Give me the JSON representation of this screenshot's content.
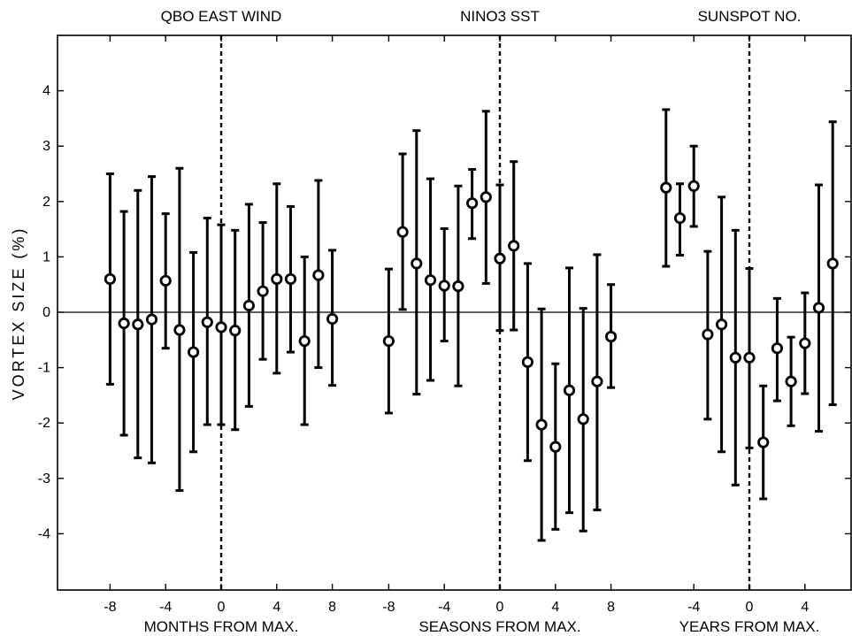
{
  "chart_data": {
    "type": "scatter",
    "ylabel": "VORTEX SIZE (%)",
    "ylim": [
      -5,
      5
    ],
    "yticks": [
      -4,
      -3,
      -2,
      -1,
      0,
      1,
      2,
      3,
      4
    ],
    "grid": false,
    "zero_line": true,
    "panels": [
      {
        "title": "QBO EAST WIND",
        "xlabel": "MONTHS FROM MAX.",
        "xlim": [
          -12,
          13.5
        ],
        "xticks": [
          -8,
          -4,
          0,
          4,
          8
        ],
        "series": [
          {
            "x": [
              -8,
              -7,
              -6,
              -5,
              -4,
              -3,
              -2,
              -1,
              0,
              1,
              2,
              3,
              4,
              5,
              6,
              7,
              8
            ],
            "y": [
              0.6,
              -0.2,
              -0.22,
              -0.13,
              0.57,
              -0.32,
              -0.72,
              -0.18,
              -0.27,
              -0.33,
              0.12,
              0.38,
              0.6,
              0.6,
              -0.52,
              0.67,
              -0.12
            ],
            "err_low": [
              -1.3,
              -2.22,
              -2.63,
              -2.72,
              -0.65,
              -3.22,
              -2.52,
              -2.03,
              -2.03,
              -2.12,
              -1.7,
              -0.85,
              -1.1,
              -0.72,
              -2.03,
              -1.0,
              -1.32
            ],
            "err_high": [
              2.5,
              1.82,
              2.2,
              2.45,
              1.78,
              2.6,
              1.08,
              1.7,
              1.58,
              1.48,
              1.95,
              1.62,
              2.32,
              1.91,
              1.0,
              2.38,
              1.12
            ]
          }
        ]
      },
      {
        "title": "NINO3 SST",
        "xlabel": "SEASONS FROM MAX.",
        "xlim": [
          -12,
          13.5
        ],
        "xticks": [
          -8,
          -4,
          0,
          4,
          8
        ],
        "series": [
          {
            "x": [
              -8,
              -7,
              -6,
              -5,
              -4,
              -3,
              -2,
              -1,
              0,
              1,
              2,
              3,
              4,
              5,
              6,
              7,
              8
            ],
            "y": [
              -0.52,
              1.45,
              0.88,
              0.58,
              0.48,
              0.47,
              1.97,
              2.08,
              0.97,
              1.2,
              -0.9,
              -2.03,
              -2.43,
              -1.41,
              -1.93,
              -1.25,
              -0.44
            ],
            "err_low": [
              -1.82,
              0.05,
              -1.48,
              -1.23,
              -0.52,
              -1.33,
              1.33,
              0.52,
              -0.33,
              -0.32,
              -2.68,
              -4.12,
              -3.92,
              -3.62,
              -3.95,
              -3.57,
              -1.36
            ],
            "err_high": [
              0.78,
              2.86,
              3.28,
              2.41,
              1.51,
              2.28,
              2.58,
              3.63,
              2.3,
              2.72,
              0.88,
              0.06,
              -0.93,
              0.8,
              0.07,
              1.04,
              0.5
            ]
          }
        ]
      },
      {
        "title": "SUNSPOT NO.",
        "xlabel": "YEARS FROM MAX.",
        "xlim": [
          -12,
          13.5
        ],
        "xticks": [
          -4,
          0,
          4
        ],
        "series": [
          {
            "x": [
              -6,
              -5,
              -4,
              -3,
              -2,
              -1,
              0,
              1,
              2,
              3,
              4,
              5,
              6
            ],
            "y": [
              2.25,
              1.7,
              2.28,
              -0.4,
              -0.22,
              -0.82,
              -0.82,
              -2.35,
              -0.65,
              -1.25,
              -0.56,
              0.08,
              0.88
            ],
            "err_low": [
              0.83,
              1.03,
              1.55,
              -1.93,
              -2.52,
              -3.12,
              -2.45,
              -3.37,
              -1.6,
              -2.05,
              -1.47,
              -2.15,
              -1.67
            ],
            "err_high": [
              3.66,
              2.32,
              3.0,
              1.1,
              2.08,
              1.48,
              0.79,
              -1.33,
              0.25,
              -0.45,
              0.35,
              2.3,
              3.44
            ]
          }
        ]
      }
    ]
  }
}
